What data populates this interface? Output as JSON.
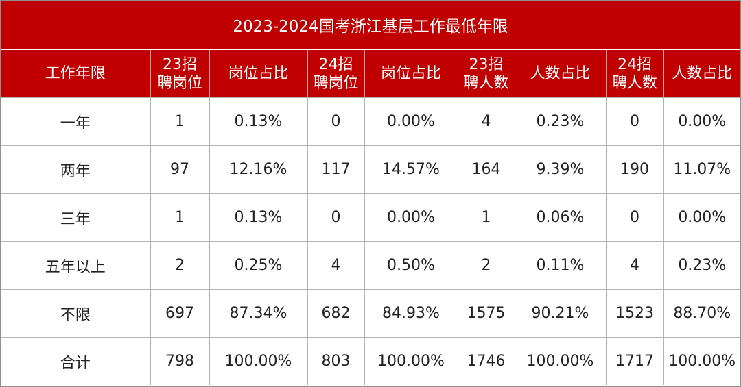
{
  "title": "2023-2024国考浙江基层工作最低年限",
  "headers": [
    [
      "工作年限"
    ],
    [
      "23招",
      "聘岗位"
    ],
    [
      "岗位占比"
    ],
    [
      "24招",
      "聘岗位"
    ],
    [
      "岗位占比"
    ],
    [
      "23招",
      "聘人数"
    ],
    [
      "人数占比"
    ],
    [
      "24招",
      "聘人数"
    ],
    [
      "人数占比"
    ]
  ],
  "rows": [
    [
      "一年",
      "1",
      "0.13%",
      "0",
      "0.00%",
      "4",
      "0.23%",
      "0",
      "0.00%"
    ],
    [
      "两年",
      "97",
      "12.16%",
      "117",
      "14.57%",
      "164",
      "9.39%",
      "190",
      "11.07%"
    ],
    [
      "三年",
      "1",
      "0.13%",
      "0",
      "0.00%",
      "1",
      "0.06%",
      "0",
      "0.00%"
    ],
    [
      "五年以上",
      "2",
      "0.25%",
      "4",
      "0.50%",
      "2",
      "0.11%",
      "4",
      "0.23%"
    ],
    [
      "不限",
      "697",
      "87.34%",
      "682",
      "84.93%",
      "1575",
      "90.21%",
      "1523",
      "88.70%"
    ],
    [
      "合计",
      "798",
      "100.00%",
      "803",
      "100.00%",
      "1746",
      "100.00%",
      "1717",
      "100.00%"
    ]
  ],
  "colors": {
    "header_bg": "#c00000",
    "header_text": "#ffffff",
    "grid": "#b3b3b3"
  }
}
